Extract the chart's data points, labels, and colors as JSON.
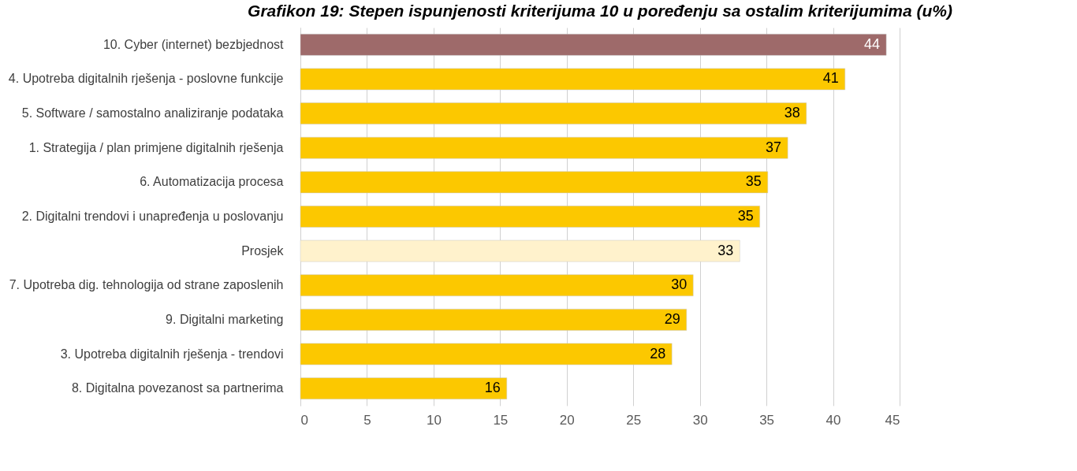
{
  "chart_data": {
    "type": "bar",
    "orientation": "horizontal",
    "title": "Grafikon 19: Stepen ispunjenosti kriterijuma 10 u poređenju sa ostalim kriterijumima (u%)",
    "categories": [
      "10. Cyber (internet) bezbjednost",
      "4. Upotreba digitalnih rješenja - poslovne funkcije",
      "5. Software / samostalno analiziranje podataka",
      "1. Strategija / plan primjene digitalnih rješenja",
      "6. Automatizacija procesa",
      "2. Digitalni trendovi i unapređenja u poslovanju",
      "Prosjek",
      "7. Upotreba dig. tehnologija od strane zaposlenih",
      "9. Digitalni marketing",
      "3. Upotreba digitalnih rješenja - trendovi",
      "8. Digitalna povezanost sa partnerima"
    ],
    "values": [
      44.0,
      40.9,
      38.0,
      36.6,
      35.1,
      34.5,
      33.0,
      29.5,
      29.0,
      27.9,
      15.5
    ],
    "value_labels": [
      "44",
      "41",
      "38",
      "37",
      "35",
      "35",
      "33",
      "30",
      "29",
      "28",
      "16"
    ],
    "colors": [
      "#9e6a6a",
      "#fcc800",
      "#fcc800",
      "#fcc800",
      "#fcc800",
      "#fcc800",
      "#fff2cc",
      "#fcc800",
      "#fcc800",
      "#fcc800",
      "#fcc800"
    ],
    "xlim": [
      0,
      45
    ],
    "xticks": [
      0,
      5,
      10,
      15,
      20,
      25,
      30,
      35,
      40,
      45
    ],
    "grid": "x"
  }
}
